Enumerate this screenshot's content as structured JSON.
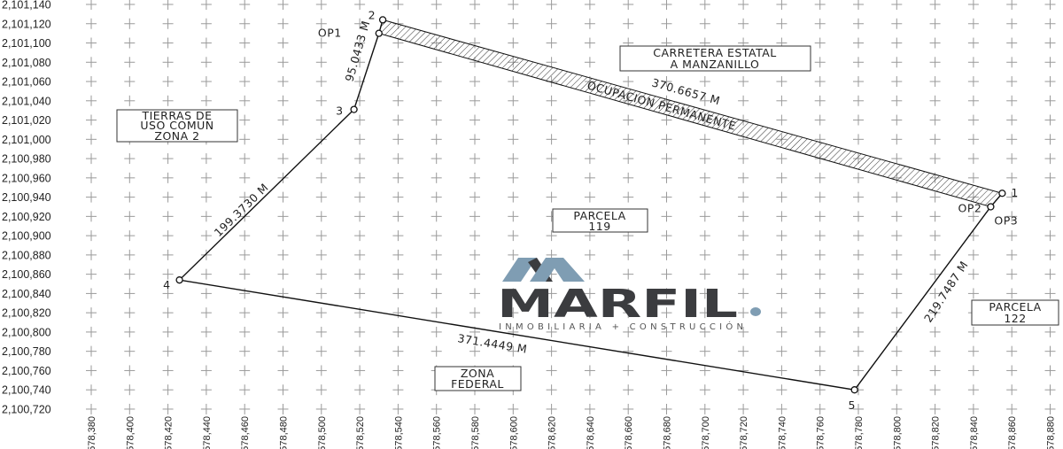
{
  "chart_data": {
    "type": "scatter",
    "x_ticks": [
      "578,380",
      "578,400",
      "578,420",
      "578,440",
      "578,460",
      "578,480",
      "578,500",
      "578,520",
      "578,540",
      "578,560",
      "578,580",
      "578,600",
      "578,620",
      "578,640",
      "578,660",
      "578,680",
      "578,700",
      "578,720",
      "578,740",
      "578,760",
      "578,780",
      "578,800",
      "578,820",
      "578,840",
      "578,860",
      "578,880"
    ],
    "y_ticks": [
      "2,101,140",
      "2,101,120",
      "2,101,100",
      "2,101,080",
      "2,101,060",
      "2,101,040",
      "2,101,020",
      "2,101,000",
      "2,100,980",
      "2,100,960",
      "2,100,940",
      "2,100,920",
      "2,100,900",
      "2,100,880",
      "2,100,860",
      "2,100,840",
      "2,100,820",
      "2,100,800",
      "2,100,780",
      "2,100,760",
      "2,100,740",
      "2,100,720"
    ],
    "xlim": [
      578380,
      578880
    ],
    "ylim": [
      2100720,
      2101140
    ],
    "grid": "crosses",
    "vertices": [
      {
        "label": "1",
        "x": 578855,
        "y": 2100944
      },
      {
        "label": "2",
        "x": 578532,
        "y": 2101124
      },
      {
        "label": "OP1",
        "x": 578530,
        "y": 2101110
      },
      {
        "label": "3",
        "x": 578517,
        "y": 2101031
      },
      {
        "label": "4",
        "x": 578426,
        "y": 2100854
      },
      {
        "label": "5",
        "x": 578778,
        "y": 2100740
      },
      {
        "label": "OP3",
        "x": 578849,
        "y": 2100930
      }
    ],
    "op2_label": "OP2",
    "distances": {
      "d_2_1": "370.6657 M",
      "d_4_5": "371.4449 M",
      "d_4_3": "199.3730 M",
      "d_3_op1": "95.0433 M",
      "d_op3_5": "219.7487 M"
    },
    "hatched_strip_label": "OCUPACION PERMANENTE",
    "areas": {
      "carretera": [
        "CARRETERA ESTATAL",
        "A MANZANILLO"
      ],
      "tierras": [
        "TIERRAS DE",
        "USO COMUN",
        "ZONA 2"
      ],
      "parcela119": [
        "PARCELA",
        "119"
      ],
      "parcela122": [
        "PARCELA",
        "122"
      ],
      "zona_federal": [
        "ZONA",
        "FEDERAL"
      ]
    }
  },
  "logo": {
    "name": "MARFIL",
    "tagline": "INMOBILIARIA + CONSTRUCCIÓN",
    "color_dark": "#3b3c3f",
    "color_accent": "#7f9db3"
  }
}
